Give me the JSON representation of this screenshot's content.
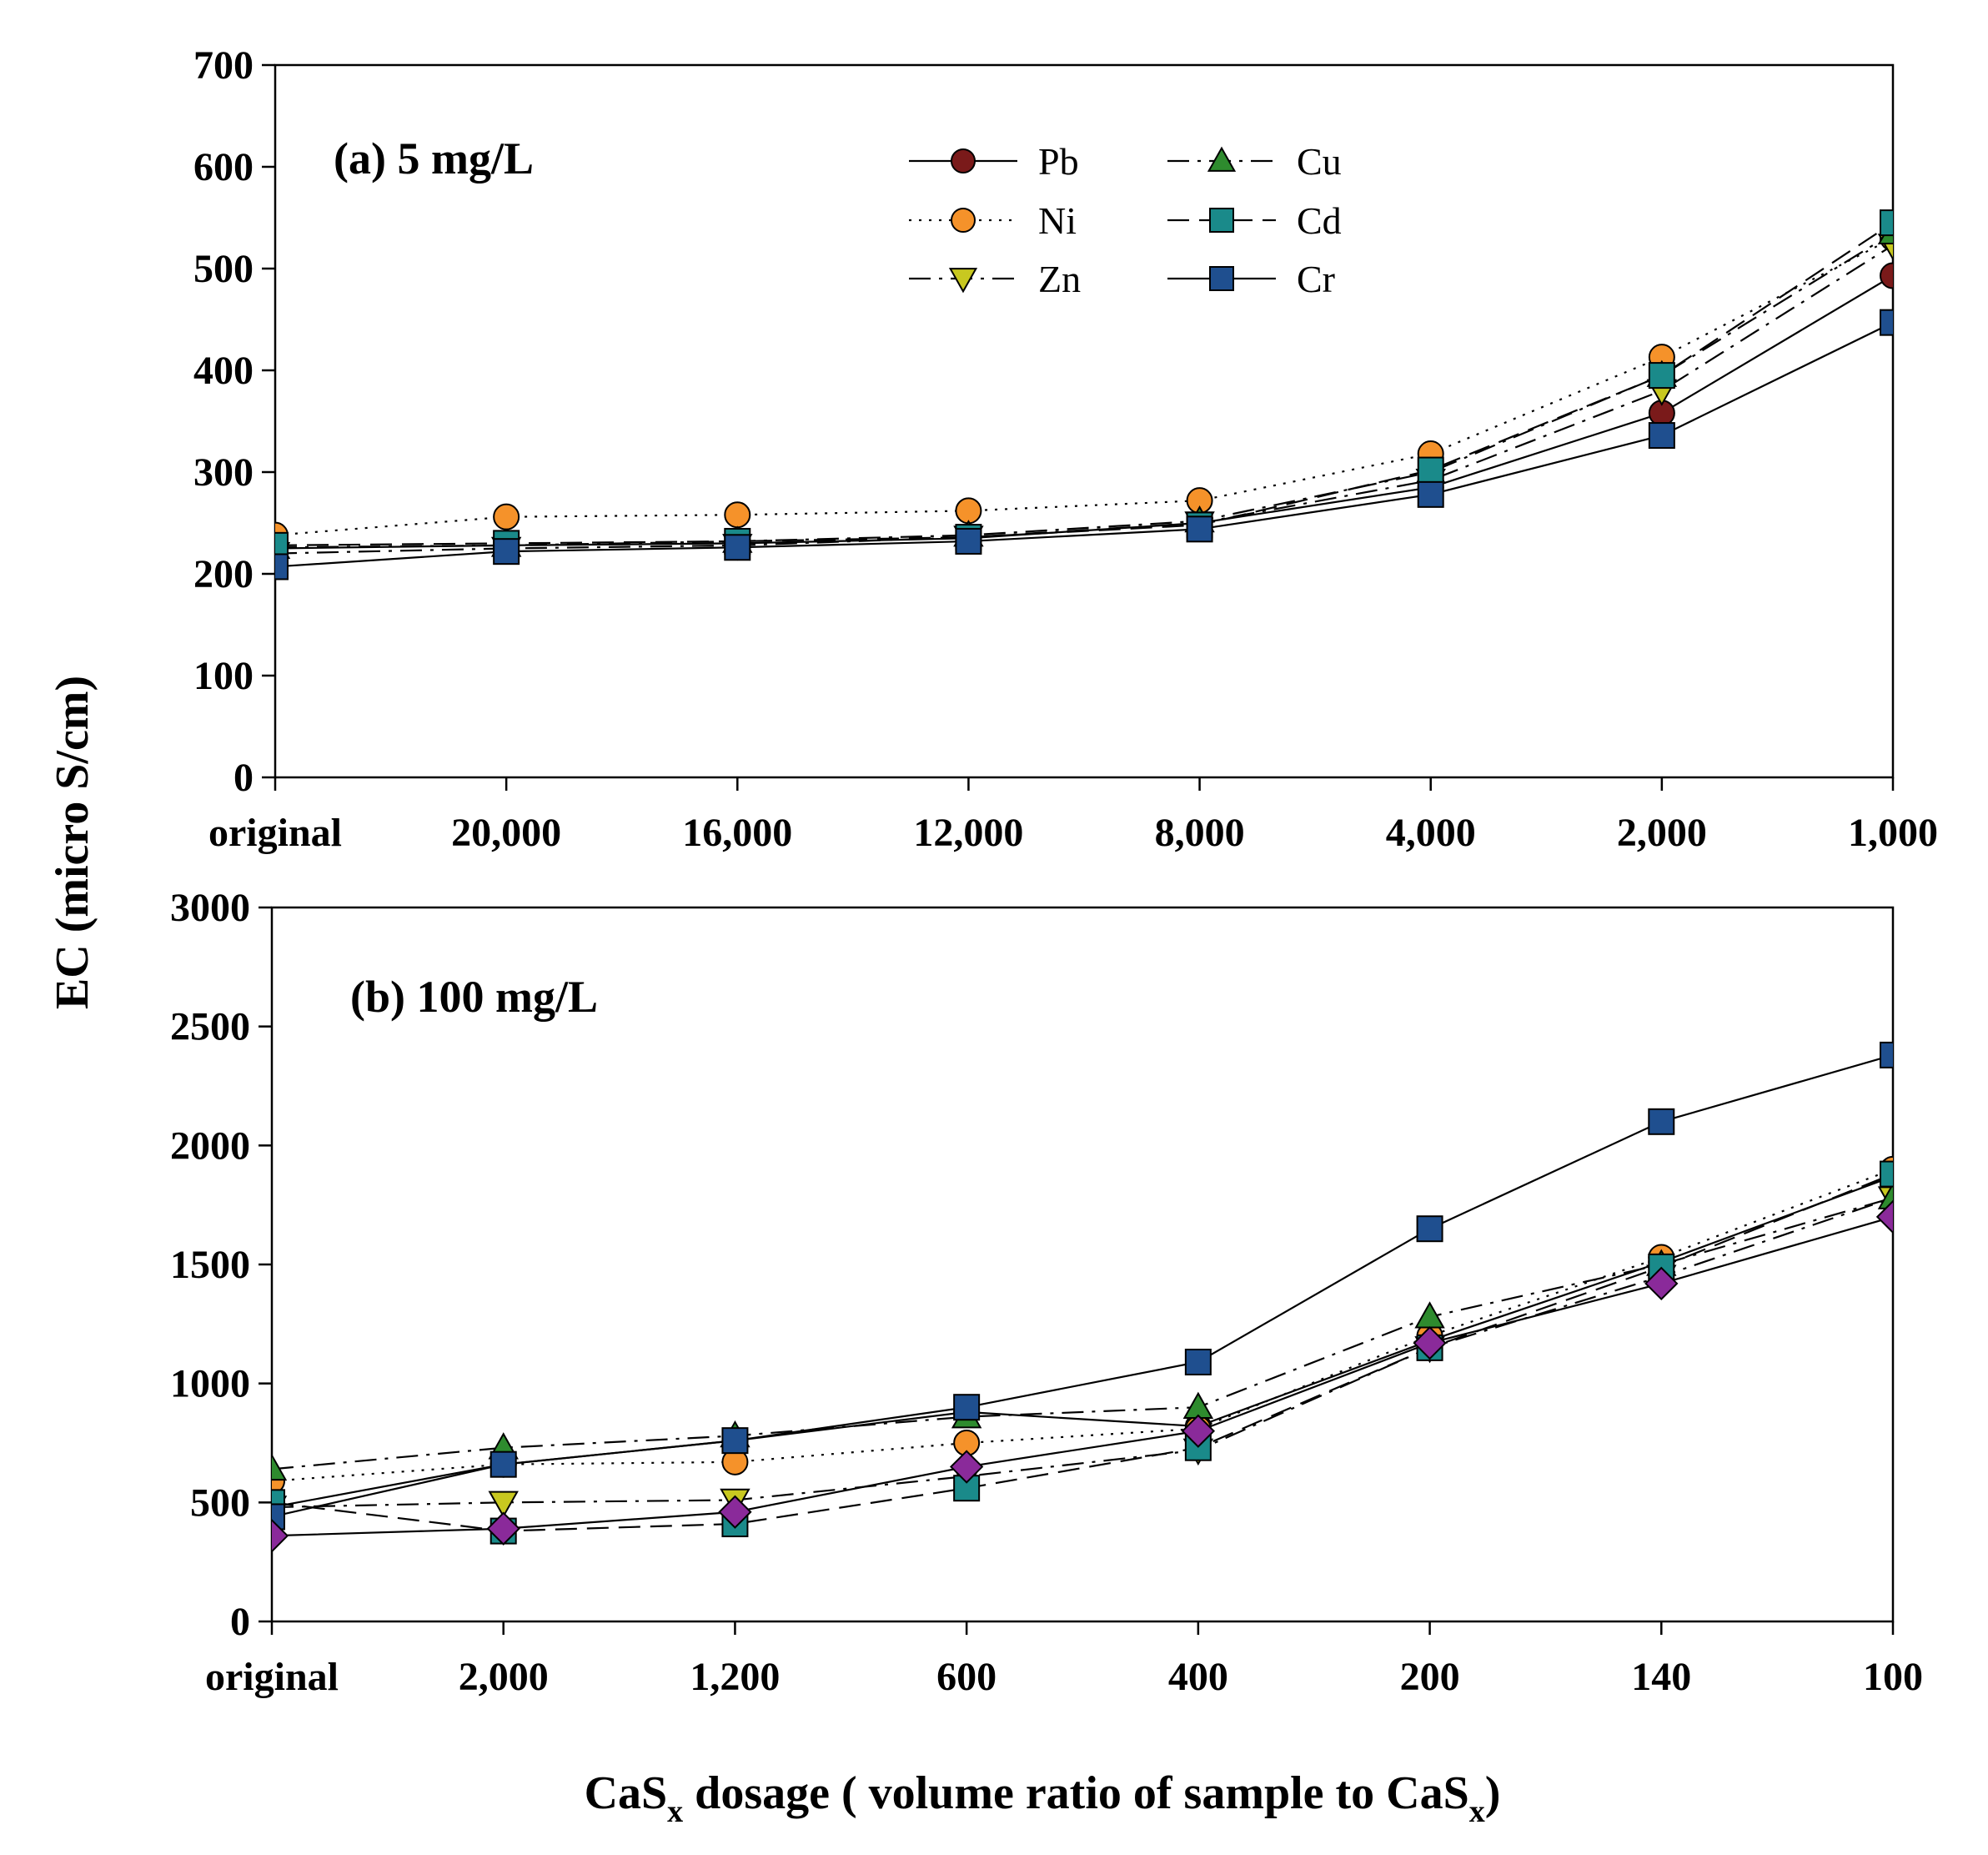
{
  "figure": {
    "ylabel": "EC (micro S/cm)",
    "xlabel_parts": [
      "CaS",
      "x",
      " dosage ( volume ratio of sample to CaS",
      "x",
      ")"
    ]
  },
  "series_styles": [
    {
      "name": "Pb",
      "color": "#7a1a1a",
      "marker": "circle",
      "dash": "solid"
    },
    {
      "name": "Ni",
      "color": "#f5922a",
      "marker": "circle",
      "dash": "dotted"
    },
    {
      "name": "Zn",
      "color": "#c8c820",
      "marker": "triangle-down",
      "dash": "dash-dot"
    },
    {
      "name": "Cu",
      "color": "#2e8b2e",
      "marker": "triangle-up",
      "dash": "dash-dot"
    },
    {
      "name": "Cd",
      "color": "#1a8a8a",
      "marker": "square",
      "dash": "dashed"
    },
    {
      "name": "Cr",
      "color": "#1f4f8f",
      "marker": "square",
      "dash": "solid"
    },
    {
      "name": "",
      "color": "#8a2a9a",
      "marker": "diamond",
      "dash": "solid"
    }
  ],
  "chart_data": [
    {
      "type": "line",
      "title": "(a) 5 mg/L",
      "categories": [
        "original",
        "20,000",
        "16,000",
        "12,000",
        "8,000",
        "4,000",
        "2,000",
        "1,000"
      ],
      "ylim": [
        0,
        700
      ],
      "yticks": [
        0,
        100,
        200,
        300,
        400,
        500,
        600,
        700
      ],
      "legend": {
        "position": "top-center",
        "entries": [
          "Pb",
          "Ni",
          "Zn",
          "Cu",
          "Cd",
          "Cr"
        ]
      },
      "series": [
        {
          "name": "Pb",
          "values": [
            225,
            228,
            230,
            235,
            250,
            285,
            358,
            493
          ]
        },
        {
          "name": "Ni",
          "values": [
            238,
            256,
            258,
            262,
            272,
            318,
            413,
            530
          ]
        },
        {
          "name": "Zn",
          "values": [
            220,
            225,
            228,
            236,
            250,
            292,
            380,
            523
          ]
        },
        {
          "name": "Cu",
          "values": [
            226,
            228,
            232,
            238,
            252,
            300,
            395,
            535
          ]
        },
        {
          "name": "Cd",
          "values": [
            228,
            230,
            232,
            236,
            248,
            302,
            395,
            545
          ]
        },
        {
          "name": "Cr",
          "values": [
            207,
            222,
            226,
            232,
            244,
            278,
            336,
            447
          ]
        }
      ]
    },
    {
      "type": "line",
      "title": "(b) 100 mg/L",
      "categories": [
        "original",
        "2,000",
        "1,200",
        "600",
        "400",
        "200",
        "140",
        "100"
      ],
      "ylim": [
        0,
        3000
      ],
      "yticks": [
        0,
        500,
        1000,
        1500,
        2000,
        2500,
        3000
      ],
      "series": [
        {
          "name": "Pb",
          "values": [
            480,
            660,
            760,
            880,
            820,
            1180,
            1510,
            1870
          ]
        },
        {
          "name": "Ni",
          "values": [
            590,
            660,
            670,
            750,
            810,
            1200,
            1530,
            1900
          ]
        },
        {
          "name": "Zn",
          "values": [
            480,
            500,
            510,
            610,
            720,
            1150,
            1450,
            1780
          ]
        },
        {
          "name": "Cu",
          "values": [
            640,
            730,
            780,
            860,
            900,
            1280,
            1500,
            1780
          ]
        },
        {
          "name": "Cd",
          "values": [
            500,
            380,
            410,
            560,
            730,
            1150,
            1490,
            1880
          ]
        },
        {
          "name": "Cr",
          "values": [
            440,
            660,
            760,
            900,
            1090,
            1650,
            2100,
            2380
          ]
        },
        {
          "name": "",
          "values": [
            360,
            390,
            460,
            650,
            800,
            1170,
            1420,
            1700
          ]
        }
      ]
    }
  ]
}
